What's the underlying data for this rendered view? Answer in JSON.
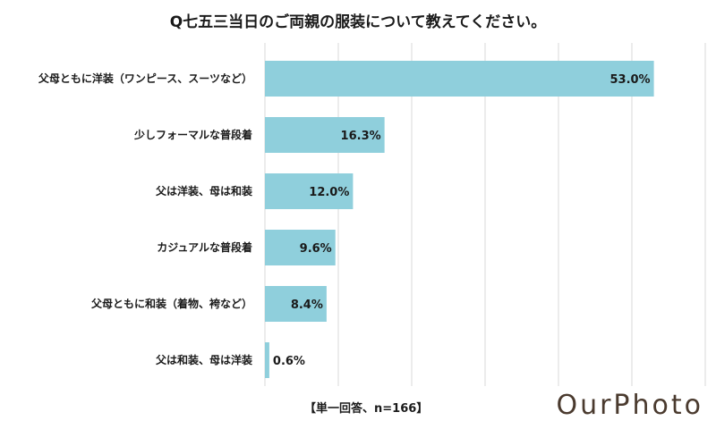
{
  "chart_data": {
    "type": "bar",
    "orientation": "horizontal",
    "title": "Q七五三当日のご両親の服装について教えてください。",
    "categories": [
      "父母ともに洋装（ワンピース、スーツなど）",
      "少しフォーマルな普段着",
      "父は洋装、母は和装",
      "カジュアルな普段着",
      "父母ともに和装（着物、袴など）",
      "父は和装、母は洋装"
    ],
    "values": [
      53.0,
      16.3,
      12.0,
      9.6,
      8.4,
      0.6
    ],
    "value_labels": [
      "53.0%",
      "16.3%",
      "12.0%",
      "9.6%",
      "8.4%",
      "0.6%"
    ],
    "xlim": [
      0,
      60
    ],
    "grid": true,
    "bar_color": "#8fcfdc",
    "grid_color": "#d9d9d9"
  },
  "note": "【単一回答、n=166】",
  "brand": "OurPhoto"
}
